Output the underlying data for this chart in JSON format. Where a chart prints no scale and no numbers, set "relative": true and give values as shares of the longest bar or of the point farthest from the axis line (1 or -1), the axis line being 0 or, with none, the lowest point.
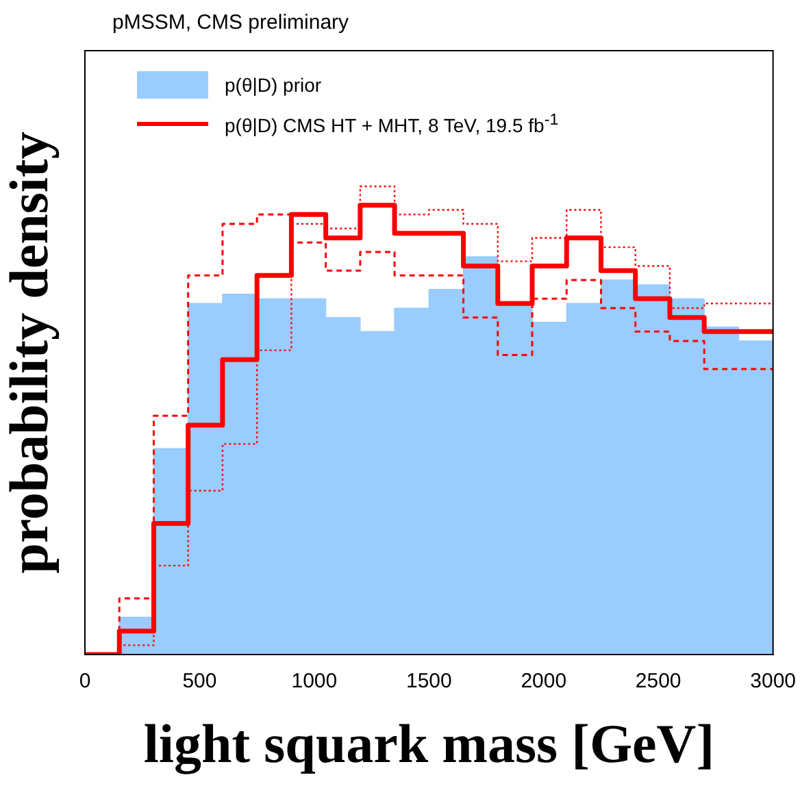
{
  "chart_data": {
    "type": "histogram",
    "title": "pMSSM, CMS preliminary",
    "xlabel": "light squark mass [GeV]",
    "ylabel": "probability density",
    "relative": true,
    "bins": [
      0,
      150,
      300,
      450,
      600,
      750,
      900,
      1050,
      1200,
      1350,
      1500,
      1650,
      1800,
      1950,
      2100,
      2250,
      2400,
      2550,
      2700,
      2850,
      3000
    ],
    "series": [
      {
        "name": "p(θ|D) prior",
        "type": "histogram",
        "color": "#99ccff",
        "values": [
          0,
          0.08,
          0.44,
          0.75,
          0.77,
          0.76,
          0.76,
          0.72,
          0.69,
          0.74,
          0.78,
          0.85,
          0.75,
          0.71,
          0.75,
          0.8,
          0.79,
          0.76,
          0.7,
          0.67
        ]
      },
      {
        "name": "p(θ|D) CMS HT + MHT, 8 TeV, 19.5 fb$^{-1}$",
        "type": "step",
        "color": "#ff0000",
        "line_style": "solid",
        "x": [
          0,
          150,
          300,
          450,
          600,
          750,
          900,
          1050,
          1200,
          1350,
          1500,
          1650,
          1800,
          1950,
          2100,
          2250,
          2400,
          2550,
          2700,
          2850,
          3000
        ],
        "values": [
          0,
          0,
          0.05,
          0.28,
          0.49,
          0.63,
          0.81,
          0.94,
          0.89,
          0.96,
          0.9,
          0.9,
          0.83,
          0.75,
          0.83,
          0.89,
          0.82,
          0.76,
          0.72,
          0.69,
          0.69
        ]
      },
      {
        "type": "step",
        "color": "#ff0000",
        "line_style": "dashed",
        "x": [
          0,
          150,
          300,
          450,
          600,
          750,
          900,
          1050,
          1200,
          1350,
          1500,
          1650,
          1800,
          1950,
          2100,
          2250,
          2400,
          2550,
          2700,
          2850,
          3000
        ],
        "values": [
          0,
          0,
          0.12,
          0.51,
          0.81,
          0.92,
          0.94,
          0.88,
          0.82,
          0.86,
          0.81,
          0.81,
          0.72,
          0.64,
          0.76,
          0.8,
          0.74,
          0.69,
          0.67,
          0.61,
          0.61
        ]
      },
      {
        "type": "step",
        "color": "#ff0000",
        "line_style": "dotted",
        "x": [
          0,
          150,
          300,
          450,
          600,
          750,
          900,
          1050,
          1200,
          1350,
          1500,
          1650,
          1800,
          1950,
          2100,
          2250,
          2400,
          2550,
          2700,
          2850,
          3000
        ],
        "values": [
          0,
          0,
          0.02,
          0.19,
          0.35,
          0.45,
          0.65,
          0.92,
          0.91,
          1.0,
          0.94,
          0.95,
          0.92,
          0.84,
          0.89,
          0.95,
          0.87,
          0.83,
          0.74,
          0.75,
          0.75
        ]
      }
    ],
    "xlim": [
      0,
      3000
    ],
    "xticks": [
      0,
      500,
      1000,
      1500,
      2000,
      2500,
      3000
    ],
    "tick_labels": "x",
    "grid": false,
    "legend": "top left"
  }
}
